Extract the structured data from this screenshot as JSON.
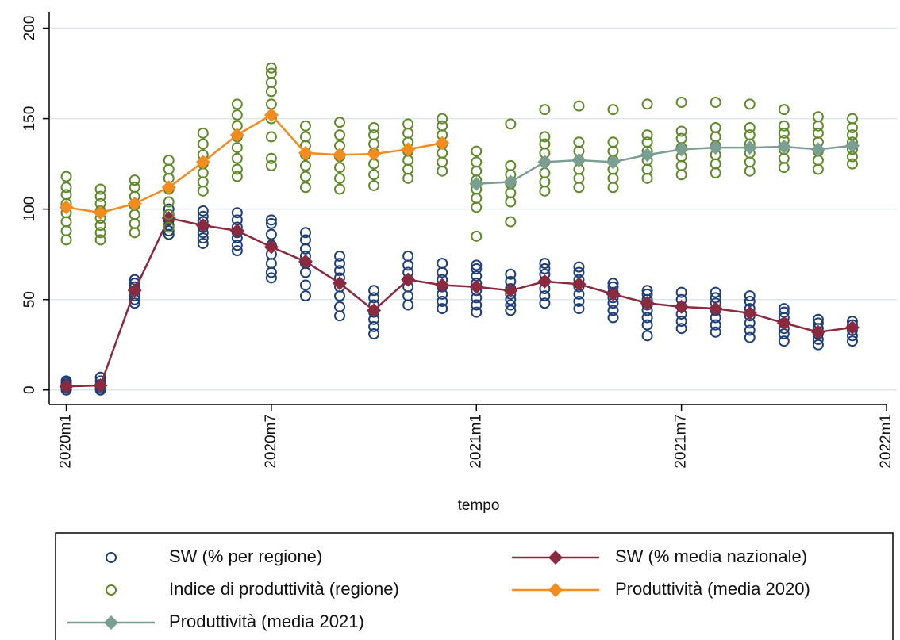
{
  "chart_data": {
    "type": "line",
    "x_label": "tempo",
    "xlim": [
      -0.5,
      24
    ],
    "ylim": [
      -8,
      209
    ],
    "xticks": [
      {
        "value": 0,
        "label": "2020m1"
      },
      {
        "value": 6,
        "label": "2020m7"
      },
      {
        "value": 12,
        "label": "2021m1"
      },
      {
        "value": 18,
        "label": "2021m7"
      },
      {
        "value": 24,
        "label": "2022m1"
      }
    ],
    "yticks": [
      0,
      50,
      100,
      150,
      200
    ],
    "grid": true,
    "legend": "bottom",
    "series": [
      {
        "name": "SW (% per regione)",
        "type": "scatter",
        "color": "#1f3f78",
        "x": [
          0,
          1,
          2,
          3,
          4,
          5,
          6,
          7,
          8,
          9,
          10,
          11,
          12,
          13,
          14,
          15,
          16,
          17,
          18,
          19,
          20,
          21,
          22,
          23
        ],
        "values": [
          [
            0,
            1,
            2,
            3,
            4,
            5
          ],
          [
            0,
            1,
            2,
            3,
            5,
            7
          ],
          [
            48,
            50,
            52,
            55,
            57,
            59,
            61
          ],
          [
            86,
            88,
            91,
            94,
            97,
            100
          ],
          [
            81,
            84,
            87,
            90,
            93,
            96,
            99
          ],
          [
            77,
            80,
            84,
            87,
            90,
            94,
            98
          ],
          [
            62,
            65,
            70,
            75,
            80,
            86,
            92,
            94
          ],
          [
            52,
            58,
            65,
            70,
            74,
            78,
            83,
            87
          ],
          [
            41,
            46,
            52,
            57,
            62,
            66,
            70,
            74
          ],
          [
            31,
            35,
            39,
            43,
            47,
            51,
            55
          ],
          [
            47,
            52,
            57,
            61,
            65,
            69,
            74
          ],
          [
            45,
            49,
            53,
            57,
            61,
            65,
            70
          ],
          [
            43,
            47,
            51,
            55,
            59,
            63,
            67,
            69
          ],
          [
            44,
            47,
            50,
            53,
            56,
            60,
            64
          ],
          [
            48,
            52,
            56,
            60,
            64,
            67,
            70
          ],
          [
            45,
            49,
            53,
            57,
            61,
            65,
            68
          ],
          [
            40,
            44,
            48,
            51,
            54,
            57,
            59
          ],
          [
            30,
            36,
            40,
            44,
            47,
            50,
            53,
            55
          ],
          [
            34,
            38,
            42,
            46,
            50,
            54
          ],
          [
            32,
            36,
            40,
            44,
            48,
            51,
            54
          ],
          [
            29,
            33,
            37,
            41,
            45,
            49,
            52
          ],
          [
            27,
            31,
            34,
            37,
            40,
            43,
            45
          ],
          [
            25,
            28,
            31,
            34,
            37,
            39
          ],
          [
            27,
            30,
            33,
            36,
            38
          ]
        ]
      },
      {
        "name": "SW (% media nazionale)",
        "type": "line",
        "color": "#8b2a3e",
        "x": [
          0,
          1,
          2,
          3,
          4,
          5,
          6,
          7,
          8,
          9,
          10,
          11,
          12,
          13,
          14,
          15,
          16,
          17,
          18,
          19,
          20,
          21,
          22,
          23
        ],
        "values": [
          2,
          2.5,
          55,
          95,
          91,
          88,
          79,
          71,
          59,
          44,
          61,
          58,
          57,
          55,
          60,
          58.5,
          53,
          48,
          46,
          45,
          42.5,
          37,
          32,
          34.5
        ]
      },
      {
        "name": "Indice di produttività (regione)",
        "type": "scatter",
        "color": "#5e8a2a",
        "x": [
          0,
          1,
          2,
          3,
          4,
          5,
          6,
          7,
          8,
          9,
          10,
          11,
          12,
          13,
          14,
          15,
          16,
          17,
          18,
          19,
          20,
          21,
          22,
          23
        ],
        "values": [
          [
            83,
            88,
            93,
            98,
            103,
            108,
            112,
            118
          ],
          [
            83,
            87,
            91,
            95,
            99,
            103,
            107,
            111
          ],
          [
            87,
            92,
            97,
            102,
            107,
            112,
            116
          ],
          [
            90,
            97,
            104,
            111,
            117,
            122,
            127
          ],
          [
            110,
            115,
            120,
            125,
            130,
            136,
            142
          ],
          [
            118,
            122,
            128,
            134,
            140,
            146,
            152,
            158
          ],
          [
            124,
            128,
            140,
            150,
            158,
            165,
            170,
            175,
            178
          ],
          [
            112,
            118,
            124,
            130,
            135,
            140,
            146
          ],
          [
            111,
            117,
            123,
            129,
            135,
            141,
            148
          ],
          [
            113,
            119,
            125,
            131,
            136,
            141,
            145
          ],
          [
            117,
            122,
            127,
            132,
            137,
            142,
            147
          ],
          [
            121,
            126,
            131,
            136,
            141,
            146,
            150
          ],
          [
            85,
            101,
            106,
            111,
            116,
            121,
            126,
            132
          ],
          [
            93,
            104,
            109,
            114,
            119,
            124,
            147
          ],
          [
            110,
            115,
            120,
            126,
            131,
            136,
            140,
            155
          ],
          [
            112,
            117,
            122,
            127,
            132,
            137,
            157
          ],
          [
            112,
            117,
            122,
            127,
            132,
            137,
            155
          ],
          [
            117,
            122,
            127,
            132,
            137,
            141,
            158
          ],
          [
            119,
            124,
            129,
            134,
            139,
            143,
            159
          ],
          [
            120,
            125,
            130,
            135,
            140,
            145,
            159
          ],
          [
            121,
            126,
            131,
            136,
            141,
            145,
            158
          ],
          [
            123,
            128,
            133,
            138,
            142,
            146,
            155
          ],
          [
            122,
            127,
            132,
            137,
            142,
            146,
            151
          ],
          [
            125,
            129,
            133,
            137,
            141,
            145,
            150
          ]
        ]
      },
      {
        "name": "Produttività (media 2020)",
        "type": "line",
        "color": "#f28c1e",
        "x": [
          0,
          1,
          2,
          3,
          4,
          5,
          6,
          7,
          8,
          9,
          10,
          11
        ],
        "values": [
          101,
          98,
          103,
          112,
          126,
          141,
          152,
          131,
          130,
          130.5,
          133,
          136.5
        ]
      },
      {
        "name": "Produttività (media 2021)",
        "type": "line",
        "color": "#7b9e92",
        "x": [
          12,
          13,
          14,
          15,
          16,
          17,
          18,
          19,
          20,
          21,
          22,
          23
        ],
        "values": [
          114,
          115,
          126,
          127,
          126,
          130,
          133,
          134,
          134,
          134.5,
          133,
          135
        ]
      }
    ]
  }
}
